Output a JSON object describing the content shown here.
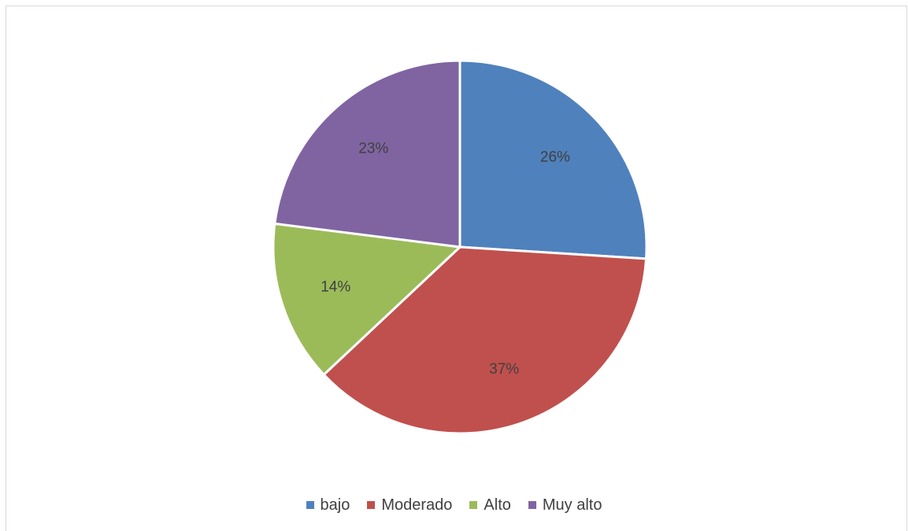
{
  "chart_data": {
    "type": "pie",
    "categories": [
      "bajo",
      "Moderado",
      "Alto",
      "Muy alto"
    ],
    "values": [
      26,
      37,
      14,
      23
    ],
    "labels": [
      "26%",
      "37%",
      "14%",
      "23%"
    ],
    "colors": [
      "#4f81bd",
      "#c0504d",
      "#9bbb59",
      "#8064a2"
    ],
    "legend_position": "bottom"
  }
}
